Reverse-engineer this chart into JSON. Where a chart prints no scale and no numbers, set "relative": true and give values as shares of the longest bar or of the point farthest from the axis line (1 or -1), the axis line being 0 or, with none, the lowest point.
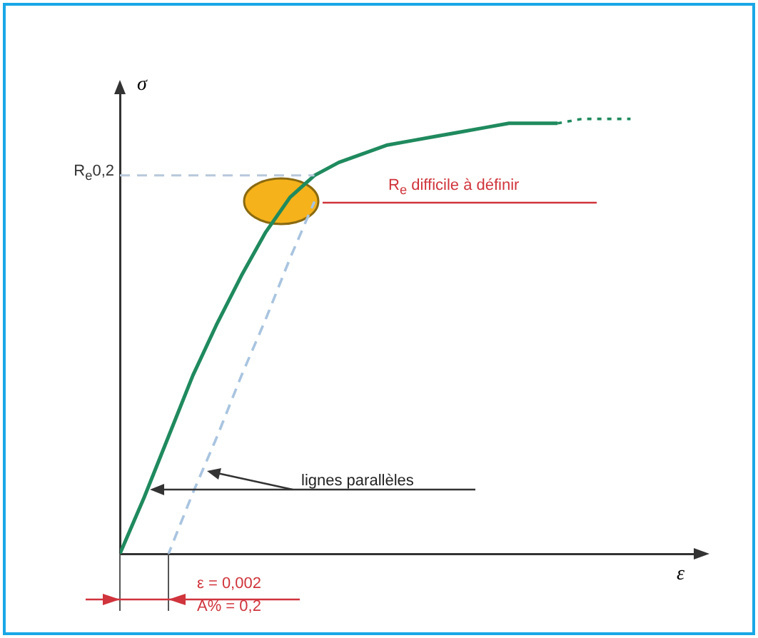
{
  "chart_data": {
    "type": "line",
    "relative": true,
    "xlabel": "ε",
    "ylabel": "σ",
    "marker": "none",
    "grid": false,
    "legend": false,
    "categories": [
      null,
      null,
      null,
      null,
      null,
      null,
      null,
      null,
      null,
      null,
      null,
      null,
      null,
      null,
      null,
      null,
      null,
      null,
      null,
      null,
      null,
      null
    ],
    "series": [
      {
        "color": "#1f8a5e",
        "line_style": "solid",
        "values": [
          0,
          0.13,
          0.27,
          0.41,
          0.53,
          0.64,
          0.74,
          0.82,
          0.87,
          0.9,
          0.92,
          0.94,
          0.95,
          0.96,
          0.97,
          0.98,
          0.99,
          0.99,
          0.99,
          null,
          null,
          null
        ]
      },
      {
        "color": "#1f8a5e",
        "line_style": "dotted",
        "values": [
          null,
          null,
          null,
          null,
          null,
          null,
          null,
          null,
          null,
          null,
          null,
          null,
          null,
          null,
          null,
          null,
          null,
          null,
          0.99,
          1,
          1,
          1
        ]
      },
      {
        "color": "#a9c4e0",
        "line_style": "dashed",
        "values": [
          null,
          null,
          0,
          0.14,
          0.27,
          0.41,
          0.54,
          0.68,
          0.81,
          null,
          null,
          null,
          null,
          null,
          null,
          null,
          null,
          null,
          null,
          null,
          null,
          null
        ]
      }
    ],
    "ref_lines": [
      {
        "axis": "y",
        "value": 0.87,
        "label": "R$_{e}$0,2",
        "color": "#b8c8dc",
        "line_style": "dashed"
      }
    ],
    "annotations": [
      "R$_{e}$ difficile à définir",
      "lignes parallèles",
      "ε = 0,002",
      "A% = 0,2"
    ]
  }
}
